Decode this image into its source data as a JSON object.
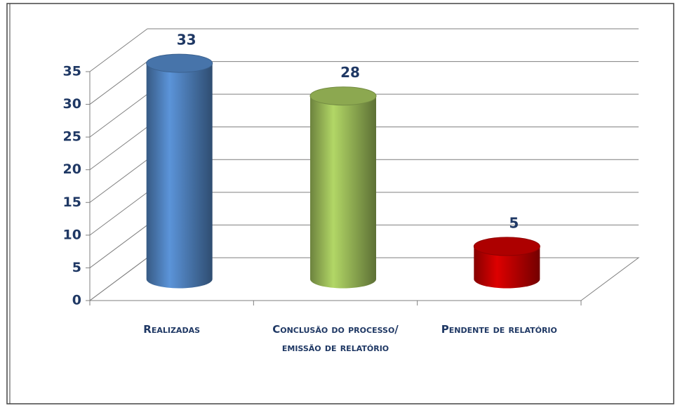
{
  "chart_data": {
    "type": "bar3d",
    "categories": [
      "Realizadas",
      "Conclusão do processo/ emissão de relatório",
      "Pendente de relatório"
    ],
    "values": [
      33,
      28,
      5
    ],
    "colors": [
      "#4f81bd",
      "#9bbb59",
      "#c00000"
    ],
    "ylim": [
      0,
      35
    ],
    "yticks": [
      0,
      5,
      10,
      15,
      20,
      25,
      30,
      35
    ],
    "grid": true
  }
}
